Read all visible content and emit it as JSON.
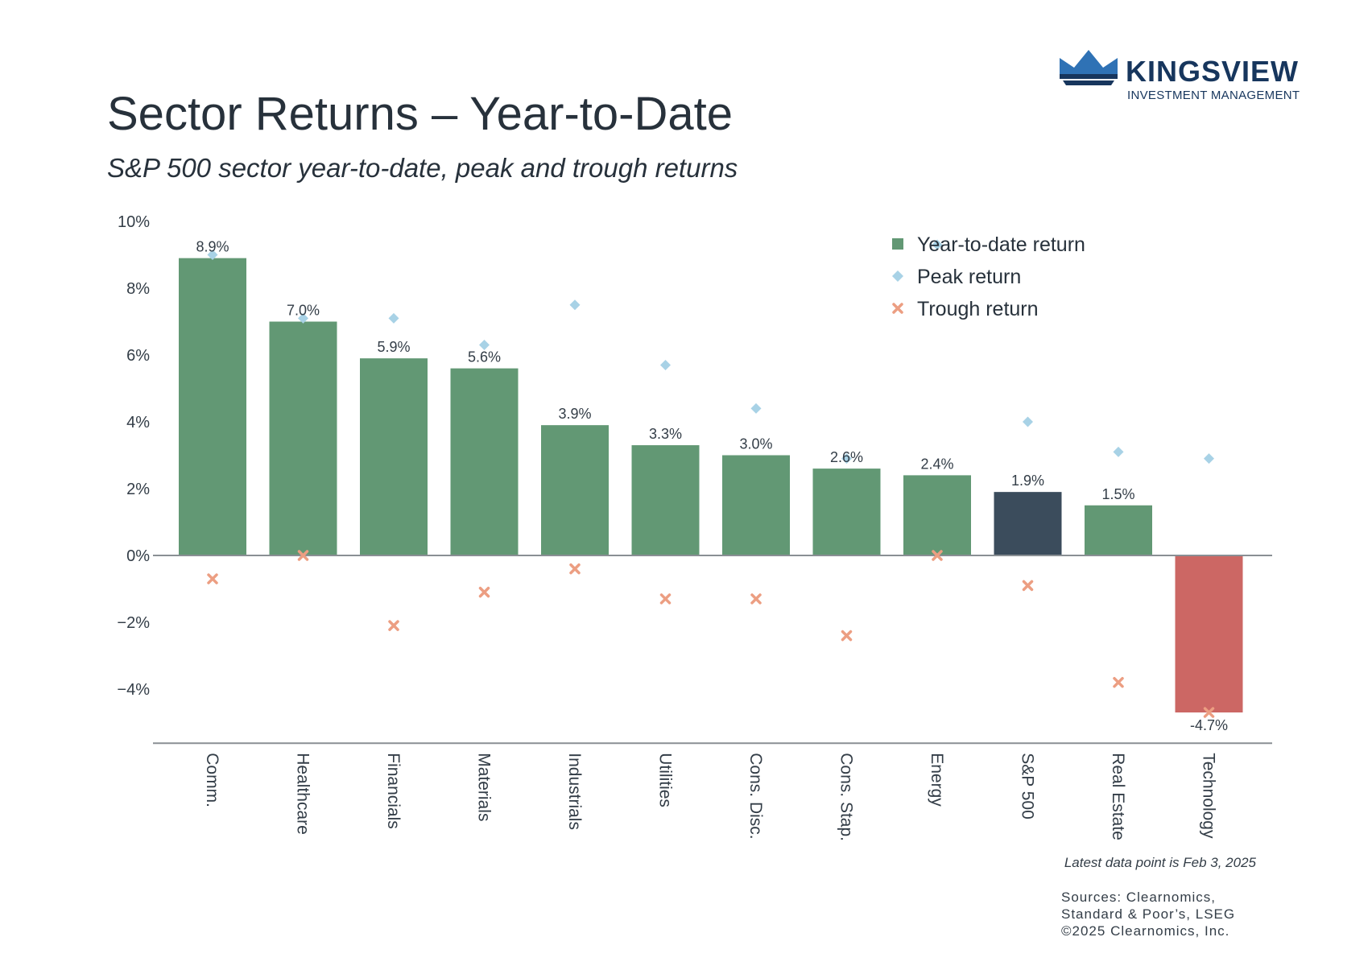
{
  "brand": {
    "name": "KINGSVIEW",
    "tagline": "INVESTMENT MANAGEMENT",
    "colors": {
      "navy": "#17365d",
      "blue": "#2f72b5"
    }
  },
  "header": {
    "title": "Sector Returns – Year-to-Date",
    "subtitle": "S&P 500 sector year-to-date, peak and trough returns"
  },
  "chart_data": {
    "type": "bar",
    "categories": [
      "Comm.",
      "Healthcare",
      "Financials",
      "Materials",
      "Industrials",
      "Utilities",
      "Cons. Disc.",
      "Cons. Stap.",
      "Energy",
      "S&P 500",
      "Real Estate",
      "Technology"
    ],
    "series": [
      {
        "name": "Year-to-date return",
        "type": "bar",
        "values": [
          8.9,
          7.0,
          5.9,
          5.6,
          3.9,
          3.3,
          3.0,
          2.6,
          2.4,
          1.9,
          1.5,
          -4.7
        ],
        "labels": [
          "8.9%",
          "7.0%",
          "5.9%",
          "5.6%",
          "3.9%",
          "3.3%",
          "3.0%",
          "2.6%",
          "2.4%",
          "1.9%",
          "1.5%",
          "-4.7%"
        ]
      },
      {
        "name": "Peak return",
        "type": "scatter",
        "marker": "diamond",
        "values": [
          9.0,
          7.1,
          7.1,
          6.3,
          7.5,
          5.7,
          4.4,
          2.9,
          9.3,
          4.0,
          3.1,
          2.9
        ]
      },
      {
        "name": "Trough return",
        "type": "scatter",
        "marker": "x",
        "values": [
          -0.7,
          0.0,
          -2.1,
          -1.1,
          -0.4,
          -1.3,
          -1.3,
          -2.4,
          0.0,
          -0.9,
          -3.8,
          -4.7
        ]
      }
    ],
    "ylim": [
      -5.5,
      10
    ],
    "yticks": [
      10,
      8,
      6,
      4,
      2,
      0,
      -2,
      -4
    ],
    "ytick_labels": [
      "10%",
      "8%",
      "6%",
      "4%",
      "2%",
      "0%",
      "−2%",
      "−4%"
    ],
    "grid": false,
    "legend": "top-right",
    "colors": {
      "positive": "#629874",
      "benchmark": "#3b4c5c",
      "negative": "#cc6764",
      "peak": "#a8d2e6",
      "trough": "#ec9e82"
    }
  },
  "footer": {
    "latest": "Latest data point is Feb 3, 2025",
    "sources": [
      "Sources: Clearnomics,",
      "Standard & Poor’s, LSEG",
      "©2025 Clearnomics, Inc."
    ]
  }
}
